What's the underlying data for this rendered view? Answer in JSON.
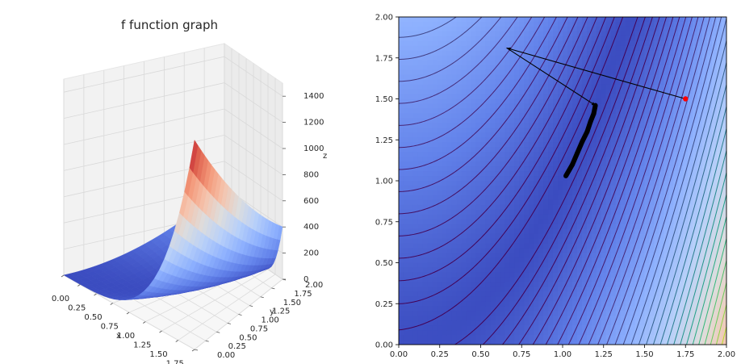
{
  "chart_data": [
    {
      "type": "surface3d",
      "title": "f function graph",
      "xlabel": "x",
      "ylabel": "y",
      "zlabel": "z",
      "xlim": [
        0,
        2
      ],
      "ylim": [
        0,
        2
      ],
      "zlim": [
        0,
        1500
      ],
      "x_ticks": [
        "0.00",
        "0.25",
        "0.50",
        "0.75",
        "1.00",
        "1.25",
        "1.50",
        "1.75",
        "2.00"
      ],
      "y_ticks": [
        "0.00",
        "0.25",
        "0.50",
        "0.75",
        "1.00",
        "1.25",
        "1.50",
        "1.75",
        "2.00"
      ],
      "z_ticks": [
        "0",
        "200",
        "400",
        "600",
        "800",
        "1000",
        "1200",
        "1400"
      ],
      "z_tick_values": [
        0,
        200,
        400,
        600,
        800,
        1000,
        1200,
        1400
      ],
      "colormap": "coolwarm",
      "surface_corner_values": [
        {
          "x": 0,
          "y": 0,
          "z": 1
        },
        {
          "x": 2,
          "y": 0,
          "z": 1601
        },
        {
          "x": 0,
          "y": 2,
          "z": 401
        },
        {
          "x": 2,
          "y": 2,
          "z": 401
        }
      ]
    },
    {
      "type": "contour",
      "title": "",
      "xlim": [
        0,
        2
      ],
      "ylim": [
        0,
        2
      ],
      "x_ticks": [
        "0.00",
        "0.25",
        "0.50",
        "0.75",
        "1.00",
        "1.25",
        "1.50",
        "1.75",
        "2.00"
      ],
      "y_ticks": [
        "0.00",
        "0.25",
        "0.50",
        "0.75",
        "1.00",
        "1.25",
        "1.50",
        "1.75",
        "2.00"
      ],
      "x_tick_values": [
        0,
        0.25,
        0.5,
        0.75,
        1.0,
        1.25,
        1.5,
        1.75,
        2.0
      ],
      "y_tick_values": [
        0,
        0.25,
        0.5,
        0.75,
        1.0,
        1.25,
        1.5,
        1.75,
        2.0
      ],
      "colormap_fill": "coolwarm",
      "colormap_lines": "viridis",
      "start_point": {
        "x": 1.75,
        "y": 1.5,
        "color": "#ff0000"
      },
      "optimization_path": [
        {
          "x": 1.75,
          "y": 1.5
        },
        {
          "x": 0.66,
          "y": 1.81
        },
        {
          "x": 1.2,
          "y": 1.46
        },
        {
          "x": 1.19,
          "y": 1.41
        },
        {
          "x": 1.17,
          "y": 1.36
        },
        {
          "x": 1.15,
          "y": 1.3
        },
        {
          "x": 1.12,
          "y": 1.24
        },
        {
          "x": 1.09,
          "y": 1.17
        },
        {
          "x": 1.06,
          "y": 1.1
        },
        {
          "x": 1.02,
          "y": 1.03
        }
      ]
    }
  ]
}
